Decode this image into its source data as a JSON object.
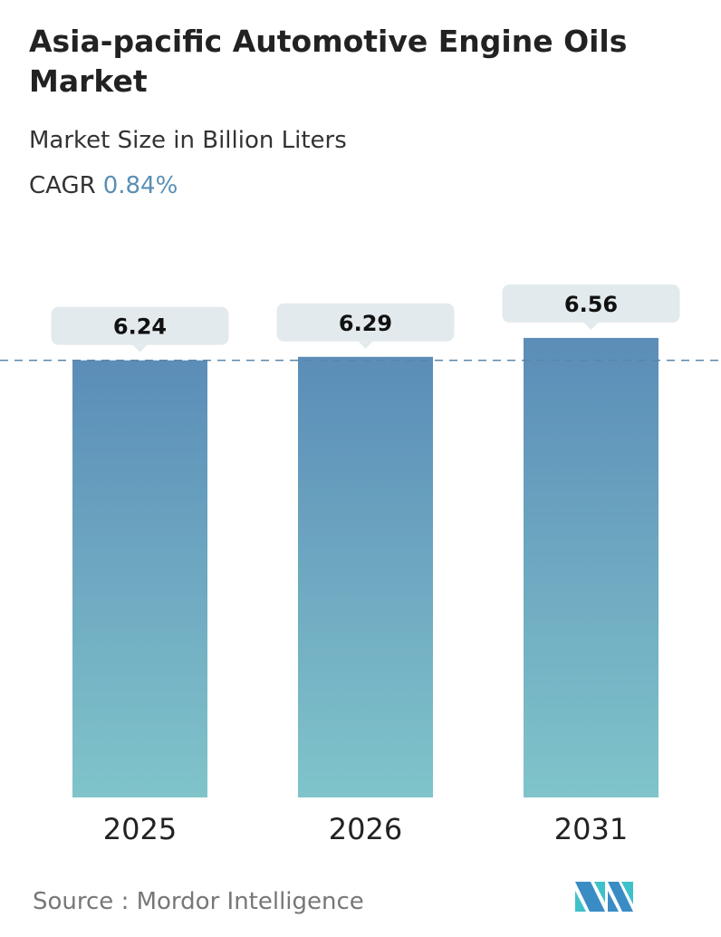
{
  "header": {
    "title": "Asia-pacific Automotive Engine Oils Market",
    "subtitle": "Market Size in Billion Liters",
    "cagr_label": "CAGR",
    "cagr_value": "0.84%"
  },
  "footer": {
    "source": "Source :  Mordor Intelligence",
    "logo_text": "Mordor Intelligence logo"
  },
  "colors": {
    "bar_top": "#5b8db8",
    "bar_bottom": "#80c4ca",
    "label_bg": "#e3eaed",
    "dash": "#5a85a8",
    "cagr": "#5a8fb5"
  },
  "chart_data": {
    "type": "bar",
    "title": "Asia-pacific Automotive Engine Oils Market",
    "ylabel": "Market Size in Billion Liters",
    "categories": [
      "2025",
      "2026",
      "2031"
    ],
    "values": [
      6.24,
      6.29,
      6.56
    ],
    "data_labels": [
      "6.24",
      "6.29",
      "6.56"
    ],
    "reference_line": 6.24,
    "grid": false,
    "ylim": [
      0,
      6.56
    ]
  }
}
